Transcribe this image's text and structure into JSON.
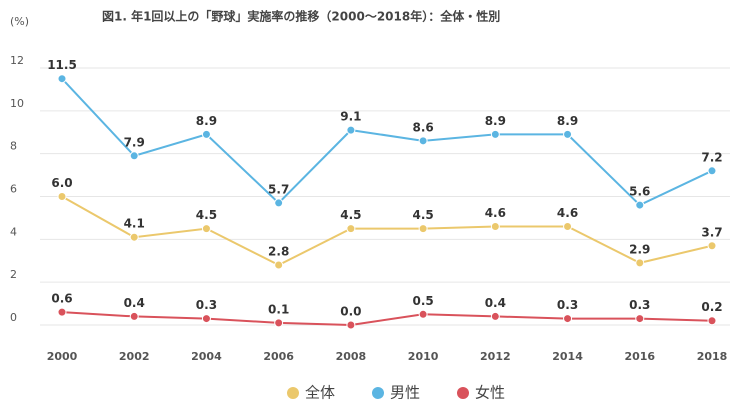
{
  "chart_data": {
    "type": "line",
    "title": "図1. 年1回以上の「野球」実施率の推移（2000〜2018年）：全体・性別",
    "y_label": "(%)",
    "categories": [
      "2000",
      "2002",
      "2004",
      "2006",
      "2008",
      "2010",
      "2012",
      "2014",
      "2016",
      "2018"
    ],
    "series": [
      {
        "name": "全体",
        "color": "#ebc86c",
        "values": [
          6.0,
          4.1,
          4.5,
          2.8,
          4.5,
          4.5,
          4.6,
          4.6,
          2.9,
          3.7
        ],
        "value_labels": [
          "6.0",
          "4.1",
          "4.5",
          "2.8",
          "4.5",
          "4.5",
          "4.6",
          "4.6",
          "2.9",
          "3.7"
        ]
      },
      {
        "name": "男性",
        "color": "#5bb5e2",
        "values": [
          11.5,
          7.9,
          8.9,
          5.7,
          9.1,
          8.6,
          8.9,
          8.9,
          5.6,
          7.2
        ],
        "value_labels": [
          "11.5",
          "7.9",
          "8.9",
          "5.7",
          "9.1",
          "8.6",
          "8.9",
          "8.9",
          "5.6",
          "7.2"
        ]
      },
      {
        "name": "女性",
        "color": "#d9525b",
        "values": [
          0.6,
          0.4,
          0.3,
          0.1,
          0.0,
          0.5,
          0.4,
          0.3,
          0.3,
          0.2
        ],
        "value_labels": [
          "0.6",
          "0.4",
          "0.3",
          "0.1",
          "0.0",
          "0.5",
          "0.4",
          "0.3",
          "0.3",
          "0.2"
        ]
      }
    ],
    "ylim": [
      0,
      12
    ],
    "yticks": [
      0,
      2,
      4,
      6,
      8,
      10,
      12
    ],
    "grid": true,
    "legend": "bottom"
  }
}
